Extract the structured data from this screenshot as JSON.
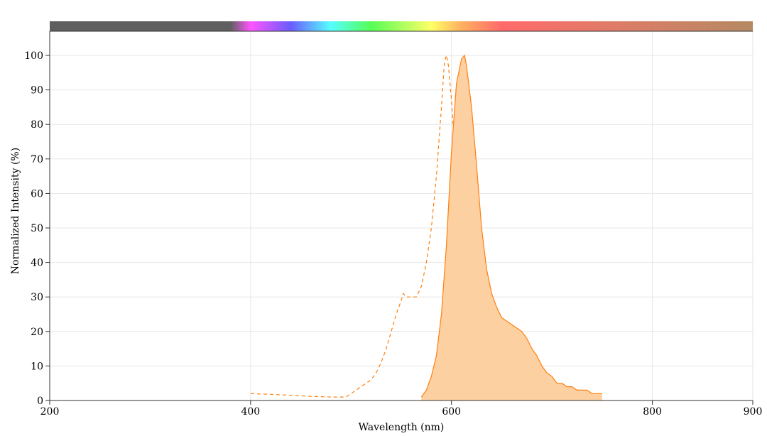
{
  "chart_data": {
    "type": "line",
    "xlabel": "Wavelength (nm)",
    "ylabel": "Normalized Intensity (%)",
    "xlim": [
      200,
      900
    ],
    "ylim": [
      0,
      100
    ],
    "x_ticks": [
      200,
      400,
      600,
      800,
      900
    ],
    "y_ticks": [
      0,
      10,
      20,
      30,
      40,
      50,
      60,
      70,
      80,
      90,
      100
    ],
    "grid": true,
    "spectrum_bar": {
      "stops": [
        {
          "wl": 200,
          "color": "#5f5f5f"
        },
        {
          "wl": 380,
          "color": "#5f5f5f"
        },
        {
          "wl": 400,
          "color": "#ff55ff"
        },
        {
          "wl": 440,
          "color": "#6a5cff"
        },
        {
          "wl": 480,
          "color": "#55ffff"
        },
        {
          "wl": 520,
          "color": "#55ff55"
        },
        {
          "wl": 580,
          "color": "#ffff66"
        },
        {
          "wl": 610,
          "color": "#ffb060"
        },
        {
          "wl": 650,
          "color": "#ff6a6a"
        },
        {
          "wl": 750,
          "color": "#e27a68"
        },
        {
          "wl": 900,
          "color": "#b58a62"
        }
      ]
    },
    "series": [
      {
        "style": "dashed",
        "color": "#ff7f0e",
        "fill": false,
        "x": [
          400,
          420,
          440,
          460,
          480,
          495,
          500,
          510,
          520,
          525,
          530,
          535,
          540,
          545,
          550,
          552,
          555,
          560,
          565,
          570,
          575,
          580,
          585,
          590,
          593,
          595,
          597,
          600,
          605,
          610,
          615,
          620,
          625,
          630
        ],
        "y": [
          2,
          1.8,
          1.5,
          1.2,
          1,
          1,
          2,
          4,
          6,
          8,
          11,
          15,
          20,
          25,
          29,
          31,
          30,
          30,
          30,
          33,
          40,
          50,
          65,
          85,
          98,
          100,
          97,
          87,
          65,
          42,
          24,
          12,
          6,
          1
        ]
      },
      {
        "style": "solid",
        "color": "#ff7f0e",
        "fill": true,
        "fill_color": "#fdd0a2",
        "x": [
          570,
          575,
          580,
          585,
          590,
          595,
          600,
          605,
          610,
          613,
          615,
          620,
          625,
          630,
          635,
          640,
          645,
          650,
          655,
          660,
          665,
          670,
          675,
          680,
          685,
          690,
          695,
          700,
          705,
          710,
          715,
          720,
          725,
          730,
          735,
          740,
          745,
          750
        ],
        "y": [
          1,
          3,
          7,
          13,
          25,
          45,
          72,
          92,
          99,
          100,
          97,
          85,
          68,
          50,
          38,
          31,
          27,
          24,
          23,
          22,
          21,
          20,
          18,
          15,
          13,
          10,
          8,
          7,
          5,
          5,
          4,
          4,
          3,
          3,
          3,
          2,
          2,
          2
        ]
      }
    ]
  }
}
